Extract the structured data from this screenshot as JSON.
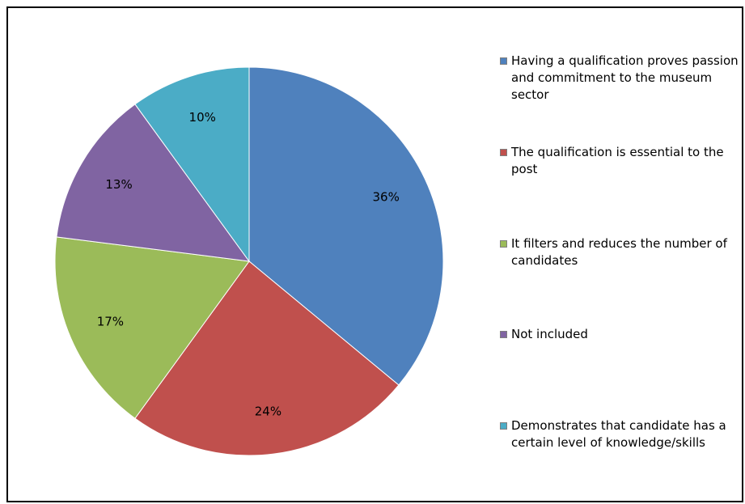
{
  "chart_data": {
    "type": "pie",
    "title": "",
    "values": [
      36,
      24,
      17,
      13,
      10
    ],
    "value_labels": [
      "36%",
      "24%",
      "17%",
      "13%",
      "10%"
    ],
    "categories": [
      "Having a qualification proves passion and commitment to the museum sector",
      "The qualification is essential to the post",
      "It filters and reduces the number of candidates",
      "Not included",
      "Demonstrates that candidate has a certain level of knowledge/skills"
    ],
    "colors": [
      "#4F81BD",
      "#C0504D",
      "#9BBB59",
      "#8064A2",
      "#4BACC6"
    ],
    "start_angle": "12 o'clock",
    "direction": "clockwise",
    "legend_position": "right"
  }
}
